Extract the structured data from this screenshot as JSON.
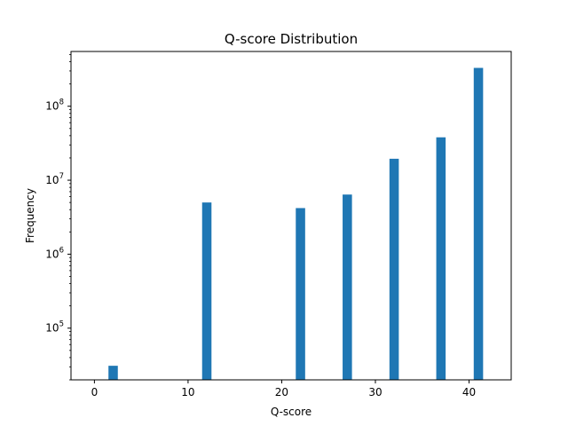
{
  "chart_data": {
    "type": "bar",
    "title": "Q-score Distribution",
    "xlabel": "Q-score",
    "ylabel": "Frequency",
    "yscale": "log",
    "xlim": [
      -2.5,
      44.5
    ],
    "ylim": [
      20000,
      550000000
    ],
    "bar_color": "#1f77b4",
    "bar_width": 1,
    "x_ticks": [
      {
        "value": 0,
        "label": "0"
      },
      {
        "value": 10,
        "label": "10"
      },
      {
        "value": 20,
        "label": "20"
      },
      {
        "value": 30,
        "label": "30"
      },
      {
        "value": 40,
        "label": "40"
      }
    ],
    "y_ticks": [
      {
        "value": 100000,
        "base": "10",
        "exp": "5"
      },
      {
        "value": 1000000,
        "base": "10",
        "exp": "6"
      },
      {
        "value": 10000000,
        "base": "10",
        "exp": "7"
      },
      {
        "value": 100000000,
        "base": "10",
        "exp": "8"
      }
    ],
    "bins": [
      {
        "x": 2,
        "value": 31000
      },
      {
        "x": 12,
        "value": 5000000
      },
      {
        "x": 22,
        "value": 4200000
      },
      {
        "x": 27,
        "value": 6400000
      },
      {
        "x": 32,
        "value": 19500000
      },
      {
        "x": 37,
        "value": 38000000
      },
      {
        "x": 41,
        "value": 330000000
      }
    ],
    "grid": false,
    "legend": "none"
  }
}
